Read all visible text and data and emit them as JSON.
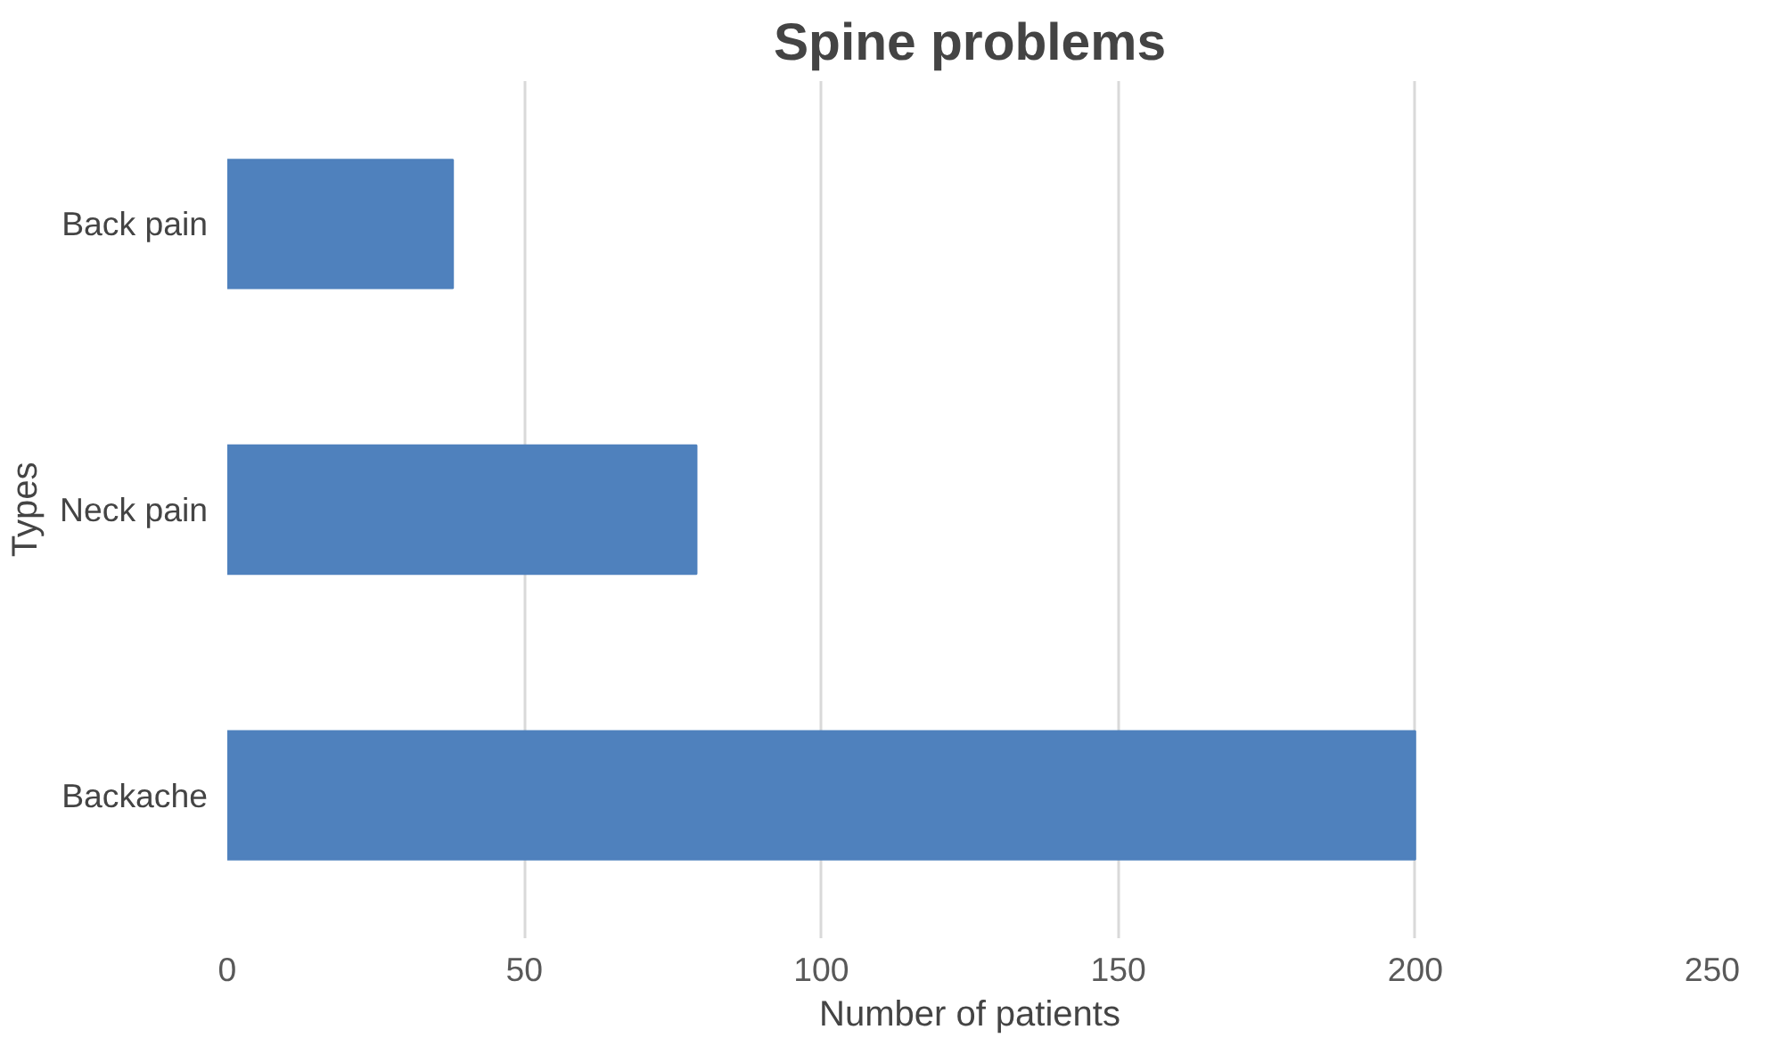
{
  "chart_data": {
    "type": "bar",
    "orientation": "horizontal",
    "title": "Spine problems",
    "xlabel": "Number of patients",
    "ylabel": "Types",
    "categories": [
      "Back pain",
      "Neck pain",
      "Backache"
    ],
    "values": [
      38,
      79,
      200
    ],
    "color": "#4f81bd",
    "xlim": [
      0,
      250
    ],
    "xticks": [
      0,
      50,
      100,
      150,
      200,
      250
    ],
    "grid": "x"
  }
}
